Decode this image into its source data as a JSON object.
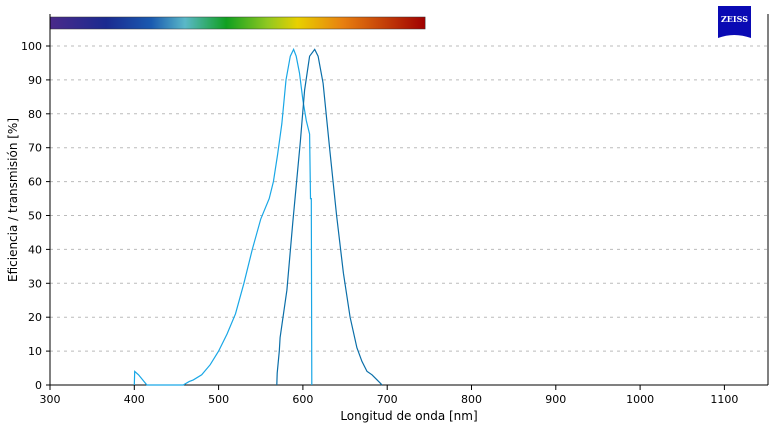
{
  "logo": {
    "text": "ZEISS",
    "color": "#0a0ab4"
  },
  "chart_data": {
    "type": "line",
    "title": "",
    "xlabel": "Longitud de onda [nm]",
    "ylabel": "Eficiencia / transmisión [%]",
    "xlim": [
      300,
      1150
    ],
    "ylim": [
      0,
      100
    ],
    "xticks": [
      300,
      400,
      500,
      600,
      700,
      800,
      900,
      1000,
      1100
    ],
    "yticks": [
      0,
      10,
      20,
      30,
      40,
      50,
      60,
      70,
      80,
      90,
      100
    ],
    "grid": "horizontal dashed",
    "spectrum_bar_range": [
      300,
      745
    ],
    "series": [
      {
        "color": "#19a7e6",
        "x": [
          400,
          400.5,
          405,
          410,
          415,
          458,
          465,
          470,
          480,
          490,
          500,
          510,
          520,
          530,
          540,
          550,
          560,
          565,
          570,
          575,
          580,
          585,
          589,
          592,
          596,
          600,
          604,
          608,
          609,
          610,
          610.5
        ],
        "y": [
          0,
          4,
          3,
          1.5,
          0,
          0,
          1,
          1.5,
          3,
          6,
          10,
          15,
          21,
          30,
          40,
          49,
          55,
          60,
          68,
          77,
          90,
          97,
          99,
          97,
          92,
          84,
          78,
          74,
          55,
          55,
          0
        ]
      },
      {
        "color": "#0a6ea8",
        "x": [
          569,
          569.5,
          572,
          573,
          581,
          588,
          597,
          602,
          608,
          614,
          618,
          624,
          632,
          640,
          648,
          656,
          664,
          670,
          676,
          682,
          688,
          694
        ],
        "y": [
          0,
          3.5,
          10,
          14,
          28,
          48,
          72,
          87,
          97,
          99,
          97,
          89,
          69,
          50,
          33,
          20,
          11,
          7,
          4,
          3,
          1.5,
          0
        ]
      }
    ]
  }
}
